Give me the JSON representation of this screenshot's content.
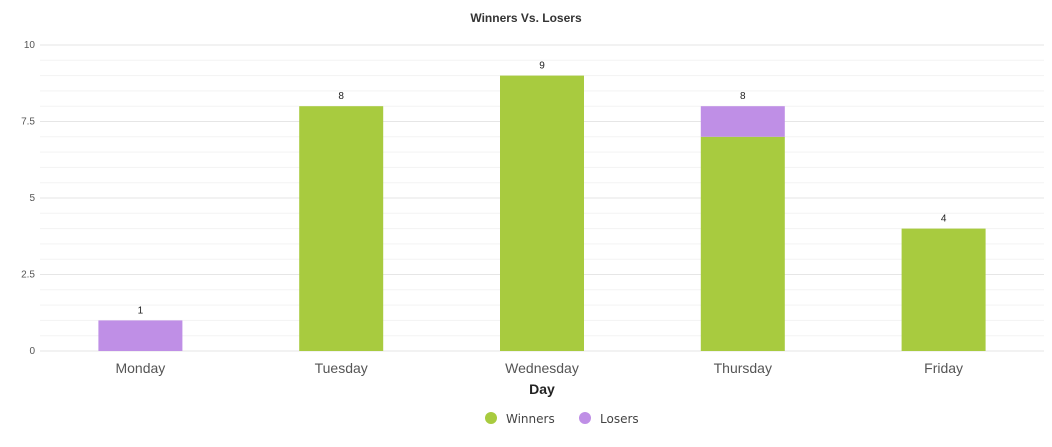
{
  "chart_data": {
    "type": "bar",
    "stacked": true,
    "title": "Winners Vs. Losers",
    "xlabel": "Day",
    "ylabel": "",
    "categories": [
      "Monday",
      "Tuesday",
      "Wednesday",
      "Thursday",
      "Friday"
    ],
    "series": [
      {
        "name": "Winners",
        "values": [
          0,
          8,
          9,
          7,
          4
        ],
        "color": "#a8cb3f"
      },
      {
        "name": "Losers",
        "values": [
          1,
          0,
          0,
          1,
          0
        ],
        "color": "#bf8fe6"
      }
    ],
    "totals": [
      1,
      8,
      9,
      8,
      4
    ],
    "ylim": [
      0,
      10
    ],
    "yticks": [
      0,
      2.5,
      5,
      7.5,
      10
    ],
    "ytick_labels": [
      "0",
      "2.5",
      "5",
      "7.5",
      "10"
    ],
    "grid": true,
    "legend_position": "bottom"
  }
}
